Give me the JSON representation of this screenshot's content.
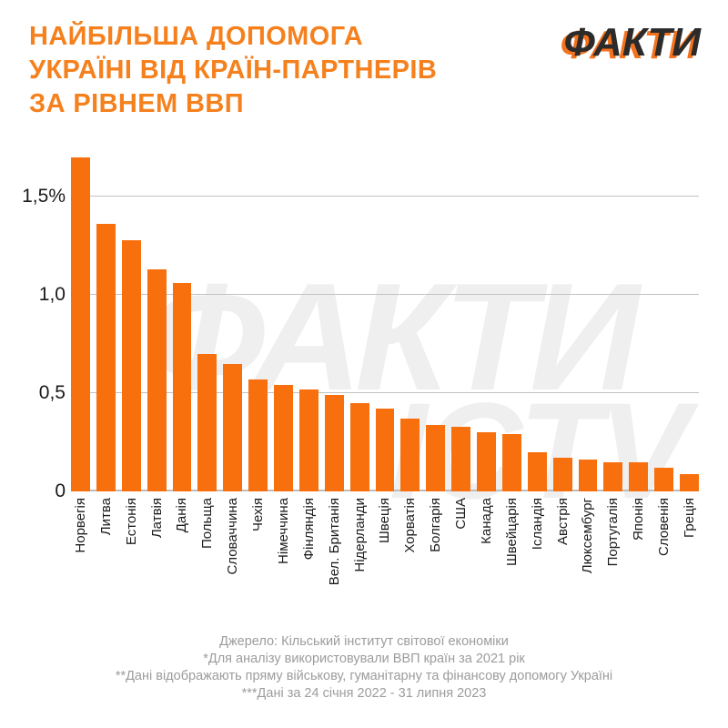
{
  "header": {
    "title_lines": [
      "НАЙБІЛЬША ДОПОМОГА",
      "УКРАЇНІ ВІД КРАЇН-ПАРТНЕРІВ",
      "ЗА РІВНЕМ ВВП"
    ],
    "logo_text": "ФАКТИ"
  },
  "watermark": {
    "line1": "ФАКТИ",
    "line2": "ICTV"
  },
  "chart_data": {
    "type": "bar",
    "title": "Найбільша допомога Україні від країн-партнерів за рівнем ВВП",
    "unit": "% of GDP",
    "categories": [
      "Норвегія",
      "Литва",
      "Естонія",
      "Латвія",
      "Данія",
      "Польща",
      "Словаччина",
      "Чехія",
      "Німеччина",
      "Фінляндія",
      "Вел. Британія",
      "Нідерланди",
      "Швеція",
      "Хорватія",
      "Болгарія",
      "США",
      "Канада",
      "Швейцарія",
      "Ісландія",
      "Австрія",
      "Люксембург",
      "Португалія",
      "Японія",
      "Словенія",
      "Греція"
    ],
    "values": [
      1.7,
      1.36,
      1.28,
      1.13,
      1.06,
      0.7,
      0.65,
      0.57,
      0.54,
      0.52,
      0.49,
      0.45,
      0.42,
      0.37,
      0.34,
      0.33,
      0.3,
      0.29,
      0.2,
      0.17,
      0.16,
      0.15,
      0.15,
      0.12,
      0.09
    ],
    "y_ticks": [
      {
        "label": "1,5%",
        "value": 1.5
      },
      {
        "label": "1,0",
        "value": 1.0
      },
      {
        "label": "0,5",
        "value": 0.5
      },
      {
        "label": "0",
        "value": 0
      }
    ],
    "ylim": [
      0,
      1.75
    ],
    "grid": true,
    "legend": "none",
    "bar_color": "#F8700D"
  },
  "footer": {
    "lines": [
      "Джерело: Кільський інститут світової економіки",
      "*Для аналізу використовували ВВП країн за 2021 рік",
      "**Дані відображають пряму військову, гуманітарну та фінансову допомогу Україні",
      "***Дані за 24 січня 2022 - 31 липня 2023"
    ]
  },
  "colors": {
    "accent_orange": "#F5811E",
    "bar_orange": "#F8700D",
    "logo_dark": "#2B2B2B",
    "grid_gray": "#C2C2C2",
    "footer_gray": "#9C9C9C",
    "watermark_gray": "#EFEFEF"
  }
}
